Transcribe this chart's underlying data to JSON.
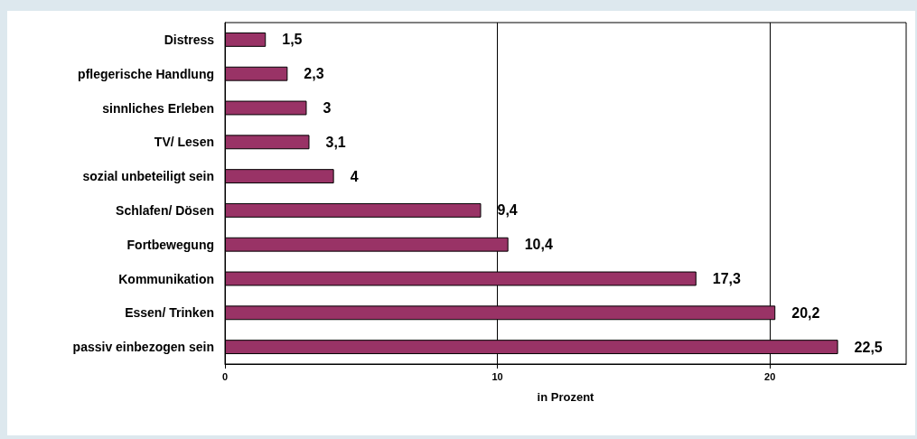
{
  "chart_data": {
    "type": "bar",
    "orientation": "horizontal",
    "xlabel": "in Prozent",
    "categories": [
      "Distress",
      "pflegerische Handlung",
      "sinnliches Erleben",
      "TV/ Lesen",
      "sozial unbeteiligt sein",
      "Schlafen/ Dösen",
      "Fortbewegung",
      "Kommunikation",
      "Essen/ Trinken",
      "passiv einbezogen sein"
    ],
    "values": [
      1.5,
      2.3,
      3,
      3.1,
      4,
      9.4,
      10.4,
      17.3,
      20.2,
      22.5
    ],
    "value_labels": [
      "1,5",
      "2,3",
      "3",
      "3,1",
      "4",
      "9,4",
      "10,4",
      "17,3",
      "20,2",
      "22,5"
    ],
    "color": "#993366",
    "xlim": [
      0,
      25
    ],
    "xticks": [
      0,
      10,
      20
    ],
    "grid": "x"
  }
}
